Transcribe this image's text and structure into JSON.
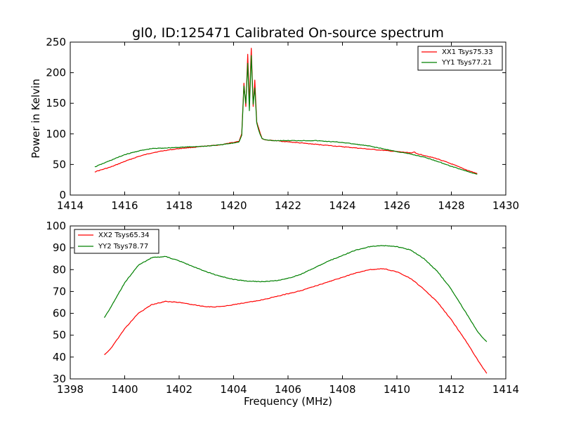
{
  "figure": {
    "title": "gl0, ID:125471 Calibrated On-source spectrum"
  },
  "chart_data": [
    {
      "type": "line",
      "title": "gl0, ID:125471 Calibrated On-source spectrum",
      "xlabel": "",
      "ylabel": "Power in Kelvin",
      "xlim": [
        1414,
        1430
      ],
      "ylim": [
        0,
        250
      ],
      "xticks": [
        1414,
        1416,
        1418,
        1420,
        1422,
        1424,
        1426,
        1428,
        1430
      ],
      "yticks": [
        0,
        50,
        100,
        150,
        200,
        250
      ],
      "grid": false,
      "legend": {
        "position": "top-right"
      },
      "series": [
        {
          "name": "XX1 Tsys75.33",
          "color": "#ff0000",
          "points": [
            [
              1414.9,
              38
            ],
            [
              1415.5,
              46
            ],
            [
              1416,
              55
            ],
            [
              1416.5,
              63
            ],
            [
              1417,
              69
            ],
            [
              1417.5,
              73
            ],
            [
              1418,
              76
            ],
            [
              1418.5,
              78
            ],
            [
              1419,
              80
            ],
            [
              1419.5,
              82
            ],
            [
              1420,
              86
            ],
            [
              1420.2,
              88
            ],
            [
              1420.3,
              100
            ],
            [
              1420.38,
              183
            ],
            [
              1420.45,
              145
            ],
            [
              1420.52,
              230
            ],
            [
              1420.58,
              150
            ],
            [
              1420.65,
              240
            ],
            [
              1420.72,
              145
            ],
            [
              1420.78,
              188
            ],
            [
              1420.85,
              120
            ],
            [
              1420.95,
              105
            ],
            [
              1421.05,
              92
            ],
            [
              1421.2,
              90
            ],
            [
              1421.5,
              89
            ],
            [
              1422,
              87
            ],
            [
              1423,
              83
            ],
            [
              1424,
              79
            ],
            [
              1425,
              75
            ],
            [
              1426,
              71
            ],
            [
              1426.5,
              69
            ],
            [
              1426.65,
              70
            ],
            [
              1426.7,
              68
            ],
            [
              1427,
              65
            ],
            [
              1427.5,
              59
            ],
            [
              1428,
              51
            ],
            [
              1428.5,
              42
            ],
            [
              1428.95,
              35
            ]
          ]
        },
        {
          "name": "YY1 Tsys77.21",
          "color": "#008000",
          "points": [
            [
              1414.9,
              46
            ],
            [
              1415.5,
              57
            ],
            [
              1416,
              66
            ],
            [
              1416.5,
              72
            ],
            [
              1417,
              76
            ],
            [
              1417.5,
              77
            ],
            [
              1418,
              78
            ],
            [
              1418.5,
              79
            ],
            [
              1419,
              80
            ],
            [
              1419.5,
              82
            ],
            [
              1420,
              85
            ],
            [
              1420.2,
              87
            ],
            [
              1420.3,
              98
            ],
            [
              1420.38,
              178
            ],
            [
              1420.45,
              150
            ],
            [
              1420.52,
              215
            ],
            [
              1420.58,
              138
            ],
            [
              1420.65,
              228
            ],
            [
              1420.72,
              148
            ],
            [
              1420.78,
              175
            ],
            [
              1420.85,
              118
            ],
            [
              1420.95,
              102
            ],
            [
              1421.05,
              92
            ],
            [
              1421.2,
              90
            ],
            [
              1421.5,
              89
            ],
            [
              1422,
              89
            ],
            [
              1423,
              89
            ],
            [
              1424,
              86
            ],
            [
              1425,
              80
            ],
            [
              1426,
              71
            ],
            [
              1426.5,
              67
            ],
            [
              1427,
              62
            ],
            [
              1427.5,
              55
            ],
            [
              1428,
              47
            ],
            [
              1428.5,
              40
            ],
            [
              1428.95,
              34
            ]
          ]
        }
      ]
    },
    {
      "type": "line",
      "title": "",
      "xlabel": "Frequency (MHz)",
      "ylabel": "",
      "xlim": [
        1398,
        1414
      ],
      "ylim": [
        30,
        100
      ],
      "xticks": [
        1398,
        1400,
        1402,
        1404,
        1406,
        1408,
        1410,
        1412,
        1414
      ],
      "yticks": [
        30,
        40,
        50,
        60,
        70,
        80,
        90,
        100
      ],
      "grid": false,
      "legend": {
        "position": "top-left"
      },
      "series": [
        {
          "name": "XX2 Tsys65.34",
          "color": "#ff0000",
          "points": [
            [
              1399.25,
              41
            ],
            [
              1399.5,
              44
            ],
            [
              1400,
              53
            ],
            [
              1400.5,
              60
            ],
            [
              1401,
              64
            ],
            [
              1401.5,
              65.5
            ],
            [
              1402,
              65
            ],
            [
              1402.5,
              64
            ],
            [
              1403,
              63
            ],
            [
              1403.5,
              63
            ],
            [
              1404,
              64
            ],
            [
              1404.5,
              65
            ],
            [
              1405,
              66
            ],
            [
              1405.5,
              67.5
            ],
            [
              1406,
              69
            ],
            [
              1406.5,
              70.5
            ],
            [
              1407,
              72.5
            ],
            [
              1407.5,
              74.5
            ],
            [
              1408,
              76.5
            ],
            [
              1408.5,
              78.5
            ],
            [
              1409,
              80
            ],
            [
              1409.5,
              80.5
            ],
            [
              1410,
              79
            ],
            [
              1410.5,
              76
            ],
            [
              1411,
              71
            ],
            [
              1411.5,
              65
            ],
            [
              1412,
              57
            ],
            [
              1412.5,
              48
            ],
            [
              1413,
              38
            ],
            [
              1413.3,
              32.5
            ]
          ]
        },
        {
          "name": "YY2 Tsys78.77",
          "color": "#008000",
          "points": [
            [
              1399.25,
              58
            ],
            [
              1399.5,
              63
            ],
            [
              1400,
              74
            ],
            [
              1400.5,
              82
            ],
            [
              1401,
              85.5
            ],
            [
              1401.5,
              86
            ],
            [
              1402,
              84
            ],
            [
              1402.5,
              81.5
            ],
            [
              1403,
              79
            ],
            [
              1403.5,
              77
            ],
            [
              1404,
              75.5
            ],
            [
              1404.5,
              74.8
            ],
            [
              1405,
              74.5
            ],
            [
              1405.5,
              74.8
            ],
            [
              1406,
              76
            ],
            [
              1406.5,
              78
            ],
            [
              1407,
              81
            ],
            [
              1407.5,
              84
            ],
            [
              1408,
              86.5
            ],
            [
              1408.5,
              89
            ],
            [
              1409,
              90.5
            ],
            [
              1409.5,
              91
            ],
            [
              1410,
              90.5
            ],
            [
              1410.5,
              89
            ],
            [
              1411,
              85
            ],
            [
              1411.5,
              79
            ],
            [
              1412,
              71
            ],
            [
              1412.5,
              61
            ],
            [
              1413,
              51
            ],
            [
              1413.3,
              47
            ]
          ]
        }
      ]
    }
  ]
}
